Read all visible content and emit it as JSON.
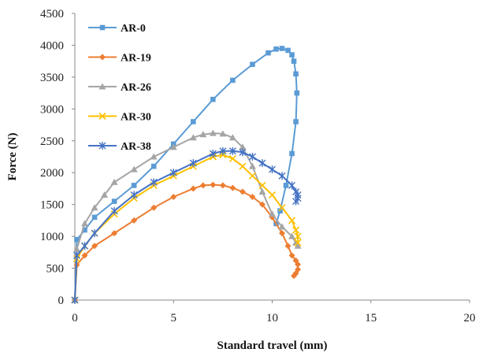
{
  "chart_data": {
    "type": "line",
    "xlabel": "Standard travel (mm)",
    "ylabel": "Force (N)",
    "xlim": [
      0,
      20
    ],
    "ylim": [
      0,
      4500
    ],
    "x_ticks": [
      0,
      5,
      10,
      15,
      20
    ],
    "y_ticks": [
      0,
      500,
      1000,
      1500,
      2000,
      2500,
      3000,
      3500,
      4000,
      4500
    ],
    "grid": false,
    "legend_position": "top-left",
    "series": [
      {
        "name": "AR-0",
        "color": "#5B9BD5",
        "marker": "square",
        "x": [
          0,
          0.1,
          0.5,
          1.0,
          2.0,
          3.0,
          4.0,
          5.0,
          6.0,
          7.0,
          8.0,
          9.0,
          9.8,
          10.2,
          10.5,
          10.8,
          11.0,
          11.1,
          11.2,
          11.25,
          11.2,
          11.0,
          10.7,
          10.4,
          10.2
        ],
        "y": [
          0,
          950,
          1100,
          1300,
          1550,
          1800,
          2100,
          2450,
          2800,
          3150,
          3450,
          3700,
          3880,
          3940,
          3950,
          3920,
          3850,
          3750,
          3550,
          3250,
          2800,
          2300,
          1800,
          1400,
          1200
        ]
      },
      {
        "name": "AR-19",
        "color": "#ED7D31",
        "marker": "diamond",
        "x": [
          0,
          0.1,
          0.5,
          1.0,
          2.0,
          3.0,
          4.0,
          5.0,
          6.0,
          6.5,
          7.0,
          7.5,
          8.0,
          8.5,
          9.0,
          9.5,
          10.0,
          10.5,
          10.8,
          11.0,
          11.2,
          11.3,
          11.3,
          11.2,
          11.1
        ],
        "y": [
          0,
          550,
          700,
          850,
          1050,
          1250,
          1450,
          1620,
          1750,
          1800,
          1810,
          1800,
          1760,
          1700,
          1620,
          1500,
          1300,
          1050,
          850,
          700,
          620,
          560,
          480,
          420,
          380
        ]
      },
      {
        "name": "AR-26",
        "color": "#A5A5A5",
        "marker": "triangle",
        "x": [
          0,
          0.1,
          0.5,
          1.0,
          1.5,
          2.0,
          3.0,
          4.0,
          5.0,
          6.0,
          6.5,
          7.0,
          7.5,
          8.0,
          8.5,
          9.0,
          9.5,
          10.0,
          10.5,
          11.0,
          11.2,
          11.3
        ],
        "y": [
          0,
          800,
          1200,
          1450,
          1650,
          1850,
          2050,
          2250,
          2400,
          2550,
          2600,
          2620,
          2610,
          2550,
          2400,
          2100,
          1700,
          1350,
          1150,
          1000,
          900,
          850
        ]
      },
      {
        "name": "AR-30",
        "color": "#FFC000",
        "marker": "x",
        "x": [
          0,
          0.1,
          0.5,
          1.0,
          2.0,
          3.0,
          4.0,
          5.0,
          6.0,
          7.0,
          7.5,
          8.0,
          8.5,
          9.0,
          9.5,
          10.0,
          10.5,
          11.0,
          11.2,
          11.3,
          11.3
        ],
        "y": [
          0,
          650,
          850,
          1050,
          1350,
          1600,
          1800,
          1950,
          2100,
          2250,
          2280,
          2220,
          2100,
          1950,
          1800,
          1650,
          1450,
          1250,
          1100,
          1000,
          900
        ]
      },
      {
        "name": "AR-38",
        "color": "#4472C4",
        "marker": "star",
        "x": [
          0,
          0.1,
          0.5,
          1.0,
          2.0,
          3.0,
          4.0,
          5.0,
          6.0,
          7.0,
          7.5,
          8.0,
          8.5,
          9.0,
          9.5,
          10.0,
          10.5,
          11.0,
          11.2,
          11.3,
          11.3,
          11.2
        ],
        "y": [
          0,
          700,
          850,
          1050,
          1400,
          1650,
          1850,
          2000,
          2150,
          2300,
          2340,
          2340,
          2320,
          2250,
          2150,
          2050,
          1950,
          1800,
          1700,
          1650,
          1600,
          1550
        ]
      }
    ]
  }
}
